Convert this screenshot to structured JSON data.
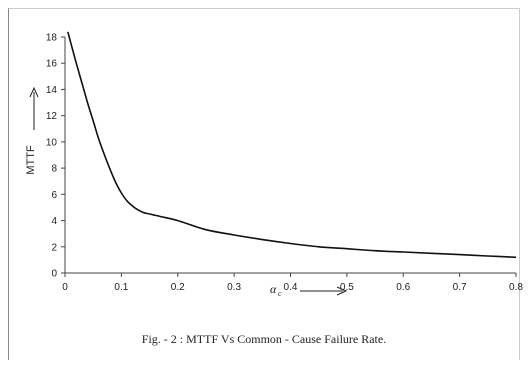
{
  "caption": "Fig. - 2 : MTTF Vs Common - Cause Failure Rate.",
  "chart_data": {
    "type": "line",
    "title": "",
    "ylabel": "MTTF",
    "xlabel_main": "α",
    "xlabel_sub": "c",
    "xlim": [
      0,
      0.8
    ],
    "ylim": [
      0,
      18
    ],
    "x_ticks": [
      "0",
      "0.1",
      "0.2",
      "0.3",
      "0.4",
      "0.5",
      "0.6",
      "0.7",
      "0.8"
    ],
    "y_ticks": [
      "0",
      "2",
      "4",
      "6",
      "8",
      "10",
      "12",
      "14",
      "16",
      "18"
    ],
    "grid": false,
    "line_color": "#111111",
    "series": [
      {
        "x": [
          0.005,
          0.01,
          0.02,
          0.03,
          0.04,
          0.05,
          0.06,
          0.07,
          0.08,
          0.09,
          0.1,
          0.11,
          0.12,
          0.13,
          0.14,
          0.15,
          0.17,
          0.2,
          0.25,
          0.3,
          0.35,
          0.4,
          0.45,
          0.5,
          0.55,
          0.6,
          0.65,
          0.7,
          0.75,
          0.8
        ],
        "y": [
          18.4,
          17.6,
          16.0,
          14.5,
          13.0,
          11.6,
          10.2,
          9.0,
          7.9,
          6.9,
          6.1,
          5.5,
          5.1,
          4.8,
          4.6,
          4.5,
          4.3,
          4.0,
          3.3,
          2.9,
          2.55,
          2.25,
          2.0,
          1.85,
          1.7,
          1.6,
          1.5,
          1.4,
          1.3,
          1.2
        ]
      }
    ]
  }
}
